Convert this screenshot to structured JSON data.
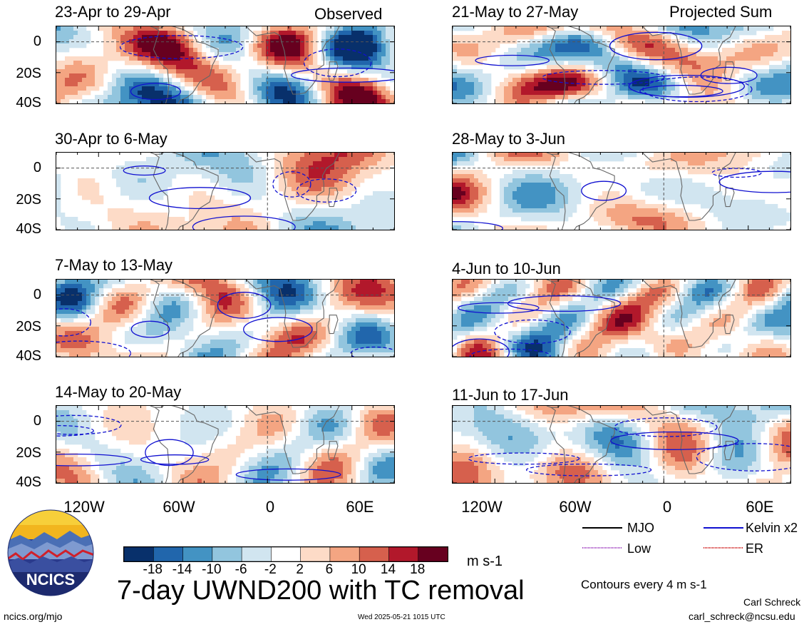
{
  "header": {
    "left_label": "Observed",
    "right_label": "Projected Sum"
  },
  "panels": [
    {
      "title": "23-Apr to 29-Apr",
      "seed": 1
    },
    {
      "title": "30-Apr to 6-May",
      "seed": 2
    },
    {
      "title": "7-May to 13-May",
      "seed": 3
    },
    {
      "title": "14-May to 20-May",
      "seed": 4
    },
    {
      "title": "21-May to 27-May",
      "seed": 5
    },
    {
      "title": "28-May to 3-Jun",
      "seed": 6
    },
    {
      "title": "4-Jun to 10-Jun",
      "seed": 7
    },
    {
      "title": "11-Jun to 17-Jun",
      "seed": 8
    }
  ],
  "y_ticks": [
    "0",
    "20S",
    "40S"
  ],
  "x_ticks": [
    "120W",
    "60W",
    "0",
    "60E"
  ],
  "colorbar": {
    "labels": [
      "-18",
      "-14",
      "-10",
      "-6",
      "-2",
      "2",
      "6",
      "10",
      "14",
      "18"
    ],
    "colors": [
      "#08306b",
      "#2166ac",
      "#4393c3",
      "#92c5de",
      "#d1e5f0",
      "#ffffff",
      "#fddbc7",
      "#f4a582",
      "#d6604d",
      "#b2182b",
      "#67001f"
    ],
    "units": "m s-1"
  },
  "legend": {
    "items": [
      {
        "label": "MJO",
        "color": "#000000"
      },
      {
        "label": "Kelvin x2",
        "color": "#1010d0"
      },
      {
        "label": "Low",
        "color": "#a040c0"
      },
      {
        "label": "ER",
        "color": "#d02020"
      }
    ],
    "note": "Contours every 4 m s-1"
  },
  "main_title": "7-day UWND200 with TC removal",
  "logo_text": "NCICS",
  "footer": {
    "url": "ncics.org/mjo",
    "timestamp": "Wed 2025-05-21 1015 UTC",
    "author": "Carl Schreck",
    "email": "carl_schreck@ncsu.edu"
  }
}
